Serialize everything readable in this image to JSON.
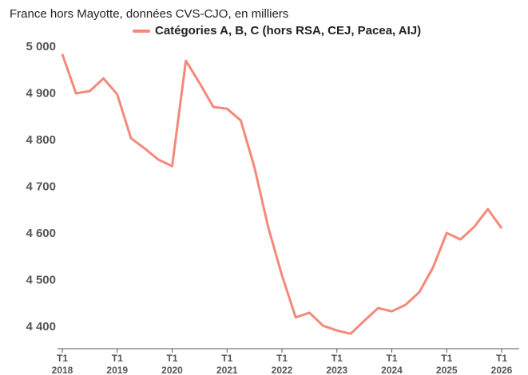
{
  "chart_data": {
    "type": "line",
    "subtitle": "France hors Mayotte, données CVS-CJO, en milliers",
    "categories": [
      "T1\n2018",
      null,
      null,
      null,
      "T1\n2019",
      null,
      null,
      null,
      "T1\n2020",
      null,
      null,
      null,
      "T1\n2021",
      null,
      null,
      null,
      "T1\n2022",
      null,
      null,
      null,
      "T1\n2023",
      null,
      null,
      null,
      "T1\n2024",
      null,
      null,
      null,
      "T1\n2025",
      null,
      null,
      null,
      "T1\n2026"
    ],
    "series": [
      {
        "name": "Catégories A, B, C (hors RSA, CEJ, Pacea, AIJ)",
        "color": "#f4897b",
        "values": [
          4985,
          4901,
          4906,
          4933,
          4899,
          4805,
          4783,
          4759,
          4745,
          4971,
          4923,
          4872,
          4868,
          4843,
          4742,
          4614,
          4511,
          4421,
          4431,
          4403,
          4393,
          4386,
          4414,
          4441,
          4434,
          4448,
          4475,
          4528,
          4602,
          4588,
          4615,
          4653,
          4612
        ]
      }
    ],
    "ylim": [
      4354,
      5007
    ],
    "yticks": [
      {
        "value": 4400,
        "label": "4 400"
      },
      {
        "value": 4500,
        "label": "4 500"
      },
      {
        "value": 4600,
        "label": "4 600"
      },
      {
        "value": 4700,
        "label": "4 700"
      },
      {
        "value": 4800,
        "label": "4 800"
      },
      {
        "value": 4900,
        "label": "4 900"
      },
      {
        "value": 5000,
        "label": "5 000"
      }
    ]
  }
}
